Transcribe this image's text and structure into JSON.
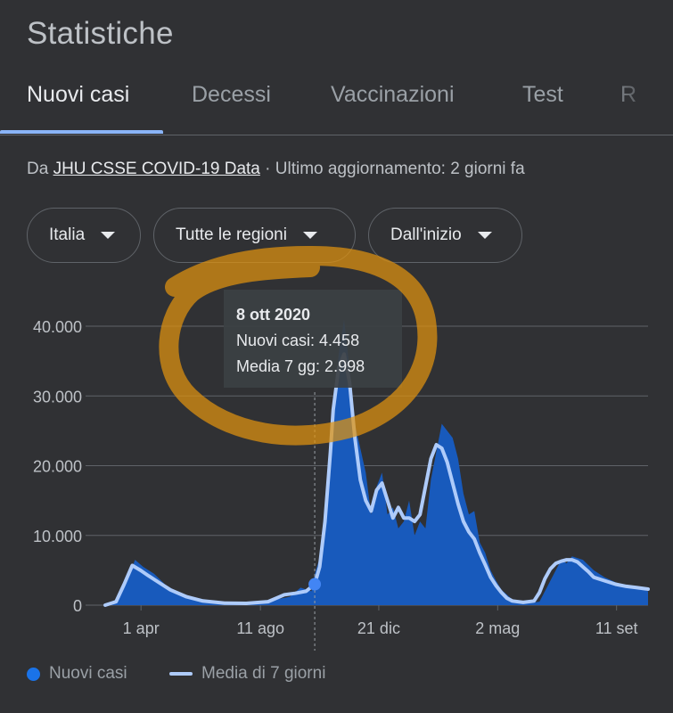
{
  "page": {
    "title": "Statistiche"
  },
  "tabs": [
    {
      "label": "Nuovi casi",
      "active": true
    },
    {
      "label": "Decessi",
      "active": false
    },
    {
      "label": "Vaccinazioni",
      "active": false
    },
    {
      "label": "Test",
      "active": false
    },
    {
      "label": "R",
      "active": false
    }
  ],
  "source": {
    "prefix": "Da ",
    "link_text": "JHU CSSE COVID-19 Data",
    "suffix": " · Ultimo aggiornamento: 2 giorni fa"
  },
  "filters": [
    {
      "label": "Italia",
      "icon": "caret-down-icon"
    },
    {
      "label": "Tutte le regioni",
      "icon": "caret-down-icon"
    },
    {
      "label": "Dall'inizio",
      "icon": "caret-down-icon"
    }
  ],
  "tooltip": {
    "date": "8 ott 2020",
    "line1": "Nuovi casi: 4.458",
    "line2": "Media 7 gg: 2.998"
  },
  "legend": {
    "bars_label": "Nuovi casi",
    "line_label": "Media di 7 giorni"
  },
  "colors": {
    "bars": "#185abc",
    "line": "#aecbfa",
    "tab_active": "#8ab4f8",
    "annotation": "#e0930f"
  },
  "chart_data": {
    "type": "bar",
    "ylim": [
      0,
      40000
    ],
    "y_ticks": [
      {
        "value": 0,
        "label": "0"
      },
      {
        "value": 10000,
        "label": "10.000"
      },
      {
        "value": 20000,
        "label": "20.000"
      },
      {
        "value": 30000,
        "label": "30.000"
      },
      {
        "value": 40000,
        "label": "40.000"
      }
    ],
    "x_ticks": [
      {
        "x": 0.066,
        "label": "1 apr"
      },
      {
        "x": 0.286,
        "label": "11 ago"
      },
      {
        "x": 0.504,
        "label": "21 dic"
      },
      {
        "x": 0.723,
        "label": "2 mag"
      },
      {
        "x": 0.942,
        "label": "11 set"
      }
    ],
    "highlight": {
      "x": 0.386,
      "label": "8 ott 2020",
      "nuovi_casi": 4458,
      "media_7gg": 2998
    },
    "series": [
      {
        "name": "Nuovi casi",
        "x": [
          0,
          0.02,
          0.04,
          0.055,
          0.07,
          0.09,
          0.11,
          0.13,
          0.16,
          0.2,
          0.25,
          0.3,
          0.34,
          0.36,
          0.38,
          0.386,
          0.4,
          0.41,
          0.42,
          0.43,
          0.44,
          0.45,
          0.46,
          0.48,
          0.49,
          0.5,
          0.51,
          0.52,
          0.53,
          0.54,
          0.55,
          0.56,
          0.57,
          0.58,
          0.59,
          0.6,
          0.61,
          0.62,
          0.64,
          0.65,
          0.66,
          0.67,
          0.68,
          0.69,
          0.7,
          0.71,
          0.72,
          0.73,
          0.74,
          0.75,
          0.76,
          0.78,
          0.8,
          0.82,
          0.84,
          0.85,
          0.86,
          0.88,
          0.9,
          0.92,
          0.94,
          0.96,
          0.98,
          1
        ],
        "values": [
          0,
          500,
          3500,
          6500,
          5500,
          4500,
          3000,
          2000,
          1200,
          500,
          300,
          600,
          1200,
          2500,
          2000,
          4458,
          8000,
          16000,
          27000,
          36000,
          41000,
          34000,
          26000,
          19000,
          13000,
          17000,
          19000,
          13000,
          14000,
          11000,
          12000,
          15000,
          10000,
          12000,
          11000,
          18000,
          22000,
          26000,
          24000,
          21000,
          16000,
          13000,
          13500,
          9000,
          7500,
          5000,
          3500,
          2200,
          1500,
          800,
          600,
          300,
          500,
          3500,
          6500,
          6000,
          7000,
          6500,
          5000,
          4000,
          3300,
          2700,
          2500,
          2000
        ]
      },
      {
        "name": "Media di 7 giorni",
        "x": [
          0,
          0.02,
          0.035,
          0.05,
          0.065,
          0.08,
          0.1,
          0.12,
          0.15,
          0.18,
          0.22,
          0.26,
          0.3,
          0.33,
          0.35,
          0.37,
          0.386,
          0.395,
          0.405,
          0.415,
          0.42,
          0.43,
          0.44,
          0.45,
          0.46,
          0.47,
          0.48,
          0.49,
          0.5,
          0.51,
          0.52,
          0.53,
          0.54,
          0.55,
          0.56,
          0.57,
          0.58,
          0.59,
          0.6,
          0.61,
          0.62,
          0.63,
          0.64,
          0.65,
          0.66,
          0.67,
          0.68,
          0.69,
          0.7,
          0.71,
          0.72,
          0.73,
          0.74,
          0.75,
          0.77,
          0.79,
          0.8,
          0.81,
          0.82,
          0.83,
          0.84,
          0.85,
          0.86,
          0.87,
          0.88,
          0.89,
          0.9,
          0.92,
          0.94,
          0.96,
          0.98,
          1
        ],
        "values": [
          0,
          500,
          3000,
          5700,
          5000,
          4200,
          3200,
          2200,
          1200,
          600,
          300,
          250,
          500,
          1500,
          1700,
          2000,
          2998,
          5500,
          12000,
          22000,
          28000,
          34000,
          36000,
          32000,
          24000,
          18000,
          15000,
          13500,
          16500,
          17500,
          15000,
          12500,
          14000,
          12500,
          12500,
          12000,
          13000,
          17000,
          21000,
          23000,
          22500,
          20500,
          17500,
          14500,
          12000,
          10500,
          9500,
          7500,
          5800,
          4000,
          2800,
          1800,
          1000,
          600,
          400,
          600,
          1800,
          3800,
          5200,
          6000,
          6300,
          6500,
          6500,
          6200,
          5500,
          4800,
          4000,
          3500,
          3000,
          2700,
          2500,
          2300
        ]
      }
    ]
  }
}
